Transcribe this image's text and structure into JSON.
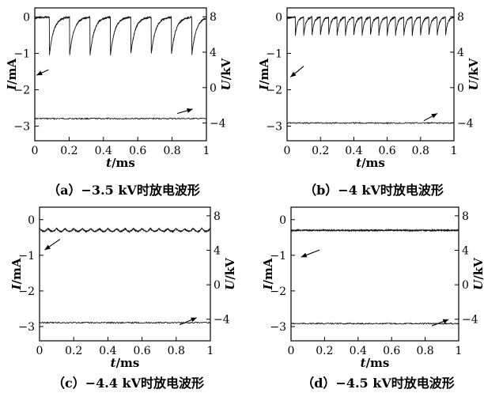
{
  "chart_data": [
    {
      "type": "line",
      "caption": "（a）−3.5 kV时放电波形",
      "xlabel_var": "t",
      "xlabel_unit": "/ms",
      "ylabel_var": "I",
      "ylabel_unit": "/mA",
      "y2label_var": "U",
      "y2label_unit": "/kV",
      "xlim": [
        0,
        1
      ],
      "ylim": [
        -3.4,
        0.25
      ],
      "y2lim": [
        -6.0,
        9.0
      ],
      "xticks": [
        "0",
        "0.2",
        "0.4",
        "0.6",
        "0.8",
        "1"
      ],
      "yticks": [
        "0",
        "−1",
        "−2",
        "−3"
      ],
      "y2ticks": [
        "8",
        "4",
        "0",
        "−4"
      ],
      "current": {
        "baseline_mA": 0.0,
        "pulse_times_ms": [
          0.085,
          0.203,
          0.322,
          0.441,
          0.559,
          0.678,
          0.796,
          0.915
        ],
        "pulse_min_mA": -1.05
      },
      "voltage_kV": -3.5,
      "arrows": [
        {
          "from": [
            0.08,
            -1.45
          ],
          "to": [
            0.01,
            -1.6
          ],
          "axis": "left"
        },
        {
          "from": [
            0.83,
            -2.65
          ],
          "to": [
            0.92,
            -2.53
          ],
          "axis": "right"
        }
      ]
    },
    {
      "type": "line",
      "caption": "（b）−4 kV时放电波形",
      "xlabel_var": "t",
      "xlabel_unit": "/ms",
      "ylabel_var": "I",
      "ylabel_unit": "/mA",
      "y2label_var": "U",
      "y2label_unit": "/kV",
      "xlim": [
        0,
        1
      ],
      "ylim": [
        -3.4,
        0.25
      ],
      "y2lim": [
        -6.0,
        9.0
      ],
      "xticks": [
        "0",
        "0.2",
        "0.4",
        "0.6",
        "0.8",
        "1"
      ],
      "yticks": [
        "0",
        "−1",
        "−2",
        "−3"
      ],
      "y2ticks": [
        "8",
        "4",
        "0",
        "−4"
      ],
      "current": {
        "baseline_mA": 0.0,
        "pulse_times_ms": [
          0.05,
          0.1,
          0.15,
          0.2,
          0.25,
          0.3,
          0.35,
          0.4,
          0.45,
          0.5,
          0.55,
          0.6,
          0.65,
          0.7,
          0.75,
          0.8,
          0.85,
          0.9,
          0.95
        ],
        "pulse_min_mA": -0.5
      },
      "voltage_kV": -4.0,
      "arrows": [
        {
          "from": [
            0.1,
            -1.35
          ],
          "to": [
            0.02,
            -1.65
          ],
          "axis": "left"
        },
        {
          "from": [
            0.82,
            -2.85
          ],
          "to": [
            0.9,
            -2.65
          ],
          "axis": "right"
        }
      ]
    },
    {
      "type": "line",
      "caption": "（c）−4.4 kV时放电波形",
      "xlabel_var": "t",
      "xlabel_unit": "/ms",
      "ylabel_var": "I",
      "ylabel_unit": "/mA",
      "y2label_var": "U",
      "y2label_unit": "/kV",
      "xlim": [
        0,
        1
      ],
      "ylim": [
        -3.4,
        0.35
      ],
      "y2lim": [
        -6.5,
        9.0
      ],
      "xticks": [
        "0",
        "0.2",
        "0.4",
        "0.6",
        "0.8",
        "1"
      ],
      "yticks": [
        "0",
        "−1",
        "−2",
        "−3"
      ],
      "y2ticks": [
        "8",
        "4",
        "0",
        "−4"
      ],
      "current": {
        "baseline_mA": -0.25,
        "ripple_period_ms": 0.05,
        "ripple_amplitude_mA": 0.08
      },
      "voltage_kV": -4.4,
      "arrows": [
        {
          "from": [
            0.12,
            -0.55
          ],
          "to": [
            0.03,
            -0.85
          ],
          "axis": "left"
        },
        {
          "from": [
            0.82,
            -2.95
          ],
          "to": [
            0.92,
            -2.75
          ],
          "axis": "right"
        }
      ]
    },
    {
      "type": "line",
      "caption": "（d）−4.5 kV时放电波形",
      "xlabel_var": "t",
      "xlabel_unit": "/ms",
      "ylabel_var": "I",
      "ylabel_unit": "/mA",
      "y2label_var": "U",
      "y2label_unit": "/kV",
      "xlim": [
        0,
        1
      ],
      "ylim": [
        -3.4,
        0.35
      ],
      "y2lim": [
        -6.5,
        9.0
      ],
      "xticks": [
        "0",
        "0.2",
        "0.4",
        "0.6",
        "0.8",
        "1"
      ],
      "yticks": [
        "0",
        "−1",
        "−2",
        "−3"
      ],
      "y2ticks": [
        "8",
        "4",
        "0",
        "−4"
      ],
      "current": {
        "baseline_mA": -0.3,
        "ripple_period_ms": 0,
        "ripple_amplitude_mA": 0
      },
      "voltage_kV": -4.5,
      "arrows": [
        {
          "from": [
            0.17,
            -0.85
          ],
          "to": [
            0.06,
            -1.05
          ],
          "axis": "left"
        },
        {
          "from": [
            0.84,
            -2.98
          ],
          "to": [
            0.94,
            -2.8
          ],
          "axis": "right"
        }
      ]
    }
  ]
}
